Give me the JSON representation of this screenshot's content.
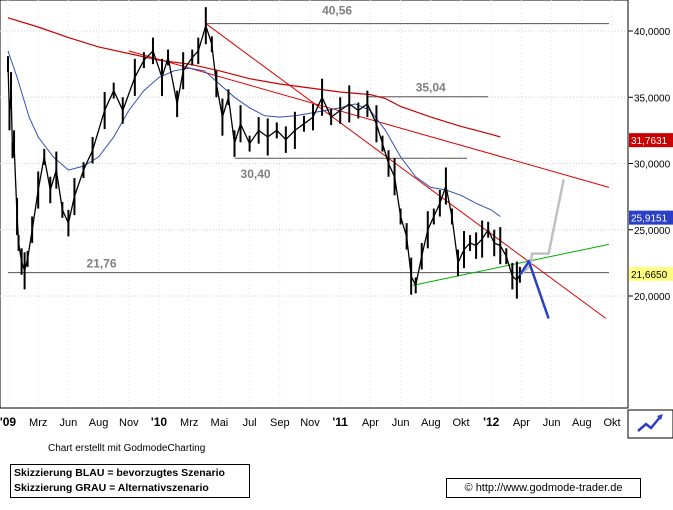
{
  "chart_data": {
    "type": "line",
    "y_axis": {
      "side": "right",
      "ylim": [
        18,
        41.5
      ],
      "ticks": [
        "40,0000",
        "35,0000",
        "30,0000",
        "25,0000",
        "20,0000"
      ]
    },
    "x_axis": {
      "labels": [
        "'09",
        "Mrz",
        "Jun",
        "Aug",
        "Nov",
        "'10",
        "Mrz",
        "Mai",
        "Jul",
        "Sep",
        "Nov",
        "'11",
        "Apr",
        "Jun",
        "Aug",
        "Okt",
        "'12",
        "Apr",
        "Jun",
        "Aug",
        "Okt"
      ]
    },
    "price_series": {
      "name": "",
      "points": [
        [
          0,
          37.5
        ],
        [
          0.05,
          33.5
        ],
        [
          0.1,
          35.5
        ],
        [
          0.15,
          31
        ],
        [
          0.2,
          31.5
        ],
        [
          0.3,
          26
        ],
        [
          0.35,
          24
        ],
        [
          0.45,
          22.6
        ],
        [
          0.55,
          21.9
        ],
        [
          0.65,
          22.8
        ],
        [
          0.8,
          25
        ],
        [
          1.0,
          28
        ],
        [
          1.2,
          30.5
        ],
        [
          1.4,
          28
        ],
        [
          1.6,
          29.5
        ],
        [
          1.8,
          26.5
        ],
        [
          2.0,
          25.5
        ],
        [
          2.2,
          27.5
        ],
        [
          2.5,
          29.5
        ],
        [
          2.8,
          31
        ],
        [
          3.2,
          34
        ],
        [
          3.5,
          35.5
        ],
        [
          3.8,
          34
        ],
        [
          4.2,
          36.5
        ],
        [
          4.5,
          37.8
        ],
        [
          4.8,
          38.5
        ],
        [
          5.1,
          36.5
        ],
        [
          5.3,
          38
        ],
        [
          5.6,
          34.5
        ],
        [
          5.8,
          37
        ],
        [
          6.1,
          38
        ],
        [
          6.3,
          38.5
        ],
        [
          6.55,
          40.4
        ],
        [
          6.75,
          39
        ],
        [
          6.9,
          36
        ],
        [
          7.1,
          33.5
        ],
        [
          7.3,
          35
        ],
        [
          7.5,
          31.5
        ],
        [
          7.7,
          33
        ],
        [
          8.0,
          31.5
        ],
        [
          8.3,
          32.5
        ],
        [
          8.6,
          32
        ],
        [
          8.9,
          32.5
        ],
        [
          9.2,
          31.8
        ],
        [
          9.5,
          32.5
        ],
        [
          9.8,
          33
        ],
        [
          10.1,
          33.5
        ],
        [
          10.4,
          35
        ],
        [
          10.7,
          33.5
        ],
        [
          11.0,
          34
        ],
        [
          11.3,
          34.5
        ],
        [
          11.6,
          34
        ],
        [
          11.9,
          34.5
        ],
        [
          12.2,
          33
        ],
        [
          12.4,
          31.5
        ],
        [
          12.6,
          30
        ],
        [
          12.8,
          29
        ],
        [
          13.0,
          26
        ],
        [
          13.2,
          24.5
        ],
        [
          13.35,
          21.5
        ],
        [
          13.5,
          20.8
        ],
        [
          13.7,
          23
        ],
        [
          13.9,
          25
        ],
        [
          14.1,
          26
        ],
        [
          14.3,
          27
        ],
        [
          14.5,
          28.3
        ],
        [
          14.7,
          26
        ],
        [
          14.9,
          22.5
        ],
        [
          15.1,
          23.5
        ],
        [
          15.3,
          24
        ],
        [
          15.5,
          23.8
        ],
        [
          15.7,
          24.3
        ],
        [
          15.9,
          25
        ],
        [
          16.1,
          24
        ],
        [
          16.3,
          23.8
        ],
        [
          16.5,
          23
        ],
        [
          16.7,
          21.5
        ],
        [
          16.85,
          21.2
        ],
        [
          16.95,
          21.6
        ]
      ]
    },
    "moving_average_blue": {
      "name": "",
      "points": [
        [
          0,
          38.5
        ],
        [
          0.3,
          36.5
        ],
        [
          0.7,
          33.5
        ],
        [
          1.0,
          32
        ],
        [
          1.5,
          30.5
        ],
        [
          2.0,
          29.5
        ],
        [
          2.5,
          29.8
        ],
        [
          3.0,
          30.5
        ],
        [
          3.5,
          32
        ],
        [
          4.0,
          34
        ],
        [
          4.5,
          35.5
        ],
        [
          5.0,
          36.5
        ],
        [
          5.5,
          37
        ],
        [
          6.0,
          37.2
        ],
        [
          6.5,
          37
        ],
        [
          7.0,
          36
        ],
        [
          7.5,
          35
        ],
        [
          8.0,
          34.2
        ],
        [
          8.5,
          33.6
        ],
        [
          9.0,
          33.5
        ],
        [
          9.5,
          33.6
        ],
        [
          10.0,
          33.8
        ],
        [
          10.5,
          34
        ],
        [
          11.0,
          34.2
        ],
        [
          11.5,
          34.5
        ],
        [
          12.0,
          34
        ],
        [
          12.5,
          32.5
        ],
        [
          13.0,
          30.5
        ],
        [
          13.5,
          29
        ],
        [
          14.0,
          28.2
        ],
        [
          14.5,
          28
        ],
        [
          15.0,
          27.6
        ],
        [
          15.5,
          27
        ],
        [
          16.0,
          26.5
        ],
        [
          16.3,
          26
        ]
      ]
    },
    "moving_average_red": {
      "name": "",
      "points": [
        [
          0,
          41
        ],
        [
          1.0,
          40.3
        ],
        [
          2.0,
          39.5
        ],
        [
          3.0,
          38.8
        ],
        [
          4.0,
          38.3
        ],
        [
          5.0,
          37.8
        ],
        [
          6.0,
          37.5
        ],
        [
          7.0,
          37
        ],
        [
          8.0,
          36.4
        ],
        [
          9.0,
          36
        ],
        [
          10.0,
          35.7
        ],
        [
          11.0,
          35.4
        ],
        [
          12.0,
          35.2
        ],
        [
          12.5,
          34.9
        ],
        [
          13.0,
          34.3
        ],
        [
          14.0,
          33.5
        ],
        [
          15.0,
          32.8
        ],
        [
          16.0,
          32.2
        ],
        [
          16.3,
          32
        ]
      ]
    },
    "last_values": {
      "blue": "25,9151",
      "red": "31,7631",
      "price": "21,6650"
    },
    "annotations": [
      {
        "text": "40,56",
        "value": 40.56
      },
      {
        "text": "35,04",
        "value": 35.04
      },
      {
        "text": "30,40",
        "value": 30.4
      },
      {
        "text": "21,76",
        "value": 21.76
      }
    ],
    "horizontal_lines": [
      {
        "value": 40.56,
        "x_from": 6.55,
        "x_to": 19.9
      },
      {
        "value": 35.04,
        "x_from": 11.9,
        "x_to": 15.9
      },
      {
        "value": 30.4,
        "x_from": 7.5,
        "x_to": 15.2
      },
      {
        "value": 21.76,
        "x_from": 0,
        "x_to": 19.9
      }
    ],
    "trendlines": [
      {
        "color": "#e00000",
        "from": [
          6.55,
          40.56
        ],
        "to": [
          19.8,
          18.3
        ]
      },
      {
        "color": "#e00000",
        "from": [
          4.0,
          38.5
        ],
        "to": [
          19.9,
          28.2
        ]
      },
      {
        "color": "#00b000",
        "from": [
          13.4,
          20.8
        ],
        "to": [
          19.9,
          23.9
        ]
      }
    ],
    "scenario_blue": [
      [
        16.95,
        21.6
      ],
      [
        17.25,
        22.6
      ],
      [
        17.9,
        18.3
      ]
    ],
    "scenario_grey": [
      [
        16.95,
        21.6
      ],
      [
        17.3,
        22.3
      ],
      [
        17.35,
        23.2
      ],
      [
        17.9,
        23.2
      ],
      [
        18.4,
        28.8
      ]
    ],
    "colors": {
      "blue": "#2a3ec8",
      "grey": "#c0c0c0",
      "price": "#000000",
      "ma_blue": "#3050b0",
      "ma_red": "#cc0000"
    }
  },
  "footer": {
    "caption": "Chart erstellt mit GodmodeCharting",
    "legend_line1": "Skizzierung BLAU = bevorzugtes Szenario",
    "legend_line2": "Skizzierung GRAU = Alternativszenario",
    "url": "© http://www.godmode-trader.de",
    "corner_icon": "chart-logo-icon"
  }
}
